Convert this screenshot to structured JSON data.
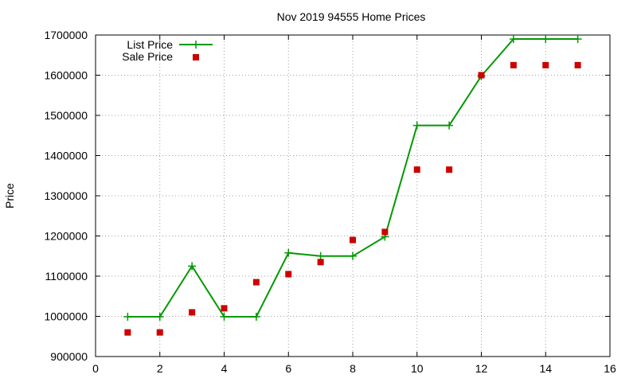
{
  "chart_data": {
    "type": "line",
    "title": "Nov 2019 94555 Home Prices",
    "xlabel": "",
    "ylabel": "Price",
    "xlim": [
      0,
      16
    ],
    "ylim": [
      900000,
      1700000
    ],
    "x_ticks": [
      0,
      2,
      4,
      6,
      8,
      10,
      12,
      14,
      16
    ],
    "y_ticks": [
      900000,
      1000000,
      1100000,
      1200000,
      1300000,
      1400000,
      1500000,
      1600000,
      1700000
    ],
    "grid": true,
    "legend_position": "top-left",
    "series": [
      {
        "name": "List Price",
        "type": "line",
        "marker": "plus",
        "color": "#009900",
        "x": [
          1,
          2,
          3,
          4,
          5,
          6,
          7,
          8,
          9,
          10,
          11,
          12,
          13,
          14,
          15
        ],
        "values": [
          999000,
          999000,
          1125000,
          999000,
          999000,
          1158000,
          1150000,
          1150000,
          1198000,
          1475000,
          1475000,
          1598000,
          1690000,
          1690000,
          1690000
        ]
      },
      {
        "name": "Sale Price",
        "type": "scatter",
        "marker": "square",
        "color": "#cc0000",
        "x": [
          1,
          2,
          3,
          4,
          5,
          6,
          7,
          8,
          9,
          10,
          11,
          12,
          13,
          14,
          15
        ],
        "values": [
          960000,
          960000,
          1010000,
          1020000,
          1085000,
          1105000,
          1135000,
          1190000,
          1210000,
          1365000,
          1365000,
          1600000,
          1625000,
          1625000,
          1625000
        ]
      }
    ]
  }
}
